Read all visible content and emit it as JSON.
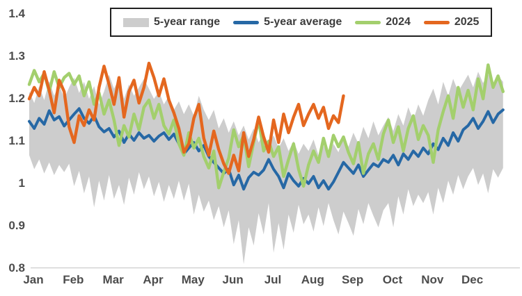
{
  "legend": {
    "items": [
      {
        "label": "5-year range",
        "color": "#cdcdcd",
        "swatch": "band"
      },
      {
        "label": "5-year average",
        "color": "#2668a5",
        "swatch": "line"
      },
      {
        "label": "2024",
        "color": "#a3cf6d",
        "swatch": "line"
      },
      {
        "label": "2025",
        "color": "#e4671f",
        "swatch": "line"
      }
    ]
  },
  "chart_data": {
    "type": "area",
    "title": "",
    "xlabel": "",
    "ylabel": "",
    "ylim": [
      0.8,
      1.4
    ],
    "grid": false,
    "legend_position": "top-center",
    "points_per_month": 8,
    "x_tick_labels": [
      "Jan",
      "Feb",
      "Mar",
      "Apr",
      "May",
      "Jun",
      "Jul",
      "Aug",
      "Sep",
      "Oct",
      "Nov",
      "Dec"
    ],
    "y_ticks": [
      {
        "value": 0.8,
        "label": "0.8"
      },
      {
        "value": 0.9,
        "label": "0.9"
      },
      {
        "value": 1.0,
        "label": "1"
      },
      {
        "value": 1.1,
        "label": "1.1"
      },
      {
        "value": 1.2,
        "label": "1.2"
      },
      {
        "value": 1.3,
        "label": "1.3"
      },
      {
        "value": 1.4,
        "label": "1.4"
      }
    ],
    "band": {
      "name": "5-year range",
      "color": "#cdcdcd",
      "upper": [
        1.215,
        1.188,
        1.228,
        1.195,
        1.24,
        1.205,
        1.232,
        1.198,
        1.225,
        1.248,
        1.212,
        1.238,
        1.198,
        1.228,
        1.185,
        1.215,
        1.255,
        1.222,
        1.245,
        1.198,
        1.232,
        1.205,
        1.225,
        1.245,
        1.222,
        1.198,
        1.215,
        1.185,
        1.205,
        1.172,
        1.192,
        1.162,
        1.185,
        1.158,
        1.205,
        1.172,
        1.148,
        1.172,
        1.128,
        1.152,
        1.118,
        1.145,
        1.112,
        1.135,
        1.102,
        1.128,
        1.095,
        1.118,
        1.088,
        1.112,
        1.082,
        1.105,
        1.075,
        1.098,
        1.068,
        1.092,
        1.075,
        1.102,
        1.065,
        1.088,
        1.058,
        1.092,
        1.072,
        1.108,
        1.085,
        1.118,
        1.092,
        1.132,
        1.105,
        1.145,
        1.112,
        1.135,
        1.155,
        1.122,
        1.162,
        1.135,
        1.178,
        1.148,
        1.185,
        1.158,
        1.195,
        1.222,
        1.185,
        1.238,
        1.205,
        1.245,
        1.215,
        1.235,
        1.255,
        1.225,
        1.262,
        1.235,
        1.258,
        1.228,
        1.252,
        1.238
      ],
      "lower": [
        1.065,
        1.032,
        1.055,
        1.022,
        1.048,
        1.018,
        1.042,
        1.025,
        1.045,
        0.992,
        1.028,
        0.975,
        1.015,
        0.942,
        1.005,
        0.958,
        1.018,
        0.962,
        0.995,
        0.948,
        1.012,
        0.972,
        1.025,
        0.985,
        1.015,
        0.968,
        1.002,
        0.955,
        0.995,
        0.962,
        1.005,
        0.958,
        0.998,
        0.925,
        0.972,
        0.932,
        0.958,
        0.912,
        0.945,
        0.895,
        0.935,
        0.855,
        0.912,
        0.808,
        0.895,
        0.852,
        0.928,
        0.878,
        0.952,
        0.835,
        0.905,
        0.842,
        0.925,
        0.882,
        0.948,
        0.902,
        0.925,
        0.885,
        0.942,
        0.898,
        0.952,
        0.912,
        0.878,
        0.932,
        0.905,
        0.875,
        0.938,
        0.902,
        0.952,
        0.922,
        0.895,
        0.935,
        0.952,
        0.895,
        0.968,
        0.925,
        0.985,
        0.945,
        0.972,
        0.952,
        0.978,
        0.925,
        0.988,
        0.952,
        1.005,
        0.972,
        1.018,
        0.985,
        1.015,
        1.035,
        0.995,
        1.022,
        0.975,
        1.032,
        1.012,
        1.035
      ]
    },
    "series": [
      {
        "name": "5-year average",
        "data_name": "average-line",
        "color": "#2668a5",
        "width": 4.0,
        "values": [
          1.145,
          1.128,
          1.152,
          1.138,
          1.17,
          1.148,
          1.156,
          1.134,
          1.148,
          1.162,
          1.175,
          1.152,
          1.14,
          1.158,
          1.132,
          1.12,
          1.128,
          1.108,
          1.122,
          1.095,
          1.115,
          1.1,
          1.118,
          1.105,
          1.112,
          1.098,
          1.11,
          1.118,
          1.102,
          1.115,
          1.092,
          1.068,
          1.082,
          1.095,
          1.075,
          1.088,
          1.062,
          1.048,
          1.035,
          1.022,
          1.032,
          0.995,
          1.018,
          0.985,
          1.012,
          1.025,
          1.018,
          1.03,
          1.055,
          1.032,
          1.015,
          0.988,
          1.022,
          1.005,
          0.992,
          1.01,
          0.998,
          1.015,
          0.988,
          1.005,
          0.985,
          1.002,
          1.025,
          1.048,
          1.035,
          1.022,
          1.042,
          1.015,
          1.03,
          1.045,
          1.038,
          1.055,
          1.048,
          1.065,
          1.042,
          1.068,
          1.055,
          1.075,
          1.062,
          1.082,
          1.068,
          1.092,
          1.078,
          1.105,
          1.088,
          1.118,
          1.098,
          1.125,
          1.135,
          1.152,
          1.128,
          1.145,
          1.168,
          1.142,
          1.162,
          1.172
        ]
      },
      {
        "name": "2024",
        "data_name": "line-2024",
        "color": "#a3cf6d",
        "width": 4.4,
        "values": [
          1.232,
          1.265,
          1.238,
          1.258,
          1.215,
          1.262,
          1.225,
          1.248,
          1.258,
          1.232,
          1.252,
          1.205,
          1.238,
          1.185,
          1.212,
          1.162,
          1.195,
          1.148,
          1.088,
          1.135,
          1.108,
          1.162,
          1.125,
          1.178,
          1.195,
          1.152,
          1.185,
          1.135,
          1.115,
          1.148,
          1.092,
          1.065,
          1.118,
          1.082,
          1.105,
          1.062,
          1.035,
          1.075,
          0.988,
          1.025,
          1.058,
          1.125,
          1.085,
          1.112,
          1.038,
          1.095,
          1.148,
          1.075,
          1.098,
          1.062,
          1.085,
          1.015,
          1.055,
          1.092,
          1.032,
          0.992,
          1.042,
          1.075,
          1.048,
          1.105,
          1.062,
          1.112,
          1.085,
          1.108,
          1.072,
          1.045,
          1.095,
          1.022,
          1.068,
          1.092,
          1.055,
          1.115,
          1.148,
          1.095,
          1.132,
          1.075,
          1.128,
          1.158,
          1.102,
          1.135,
          1.112,
          1.048,
          1.125,
          1.168,
          1.205,
          1.152,
          1.225,
          1.178,
          1.218,
          1.172,
          1.245,
          1.198,
          1.278,
          1.225,
          1.252,
          1.215
        ]
      },
      {
        "name": "2025",
        "data_name": "line-2025",
        "color": "#e4671f",
        "width": 4.4,
        "values": [
          1.198,
          1.225,
          1.205,
          1.262,
          1.218,
          1.165,
          1.242,
          1.215,
          1.132,
          1.095,
          1.158,
          1.135,
          1.172,
          1.148,
          1.225,
          1.275,
          1.232,
          1.185,
          1.248,
          1.155,
          1.215,
          1.242,
          1.188,
          1.225,
          1.282,
          1.248,
          1.205,
          1.245,
          1.195,
          1.165,
          1.128,
          1.072,
          1.092,
          1.152,
          1.185,
          1.105,
          1.065,
          1.122,
          1.078,
          1.045,
          1.022,
          1.065,
          1.028,
          1.118,
          1.062,
          1.102,
          1.155,
          1.108,
          1.072,
          1.148,
          1.095,
          1.162,
          1.118,
          1.155,
          1.185,
          1.135,
          1.162,
          1.185,
          1.152,
          1.178,
          1.128,
          1.158,
          1.142,
          1.205
        ]
      }
    ]
  }
}
